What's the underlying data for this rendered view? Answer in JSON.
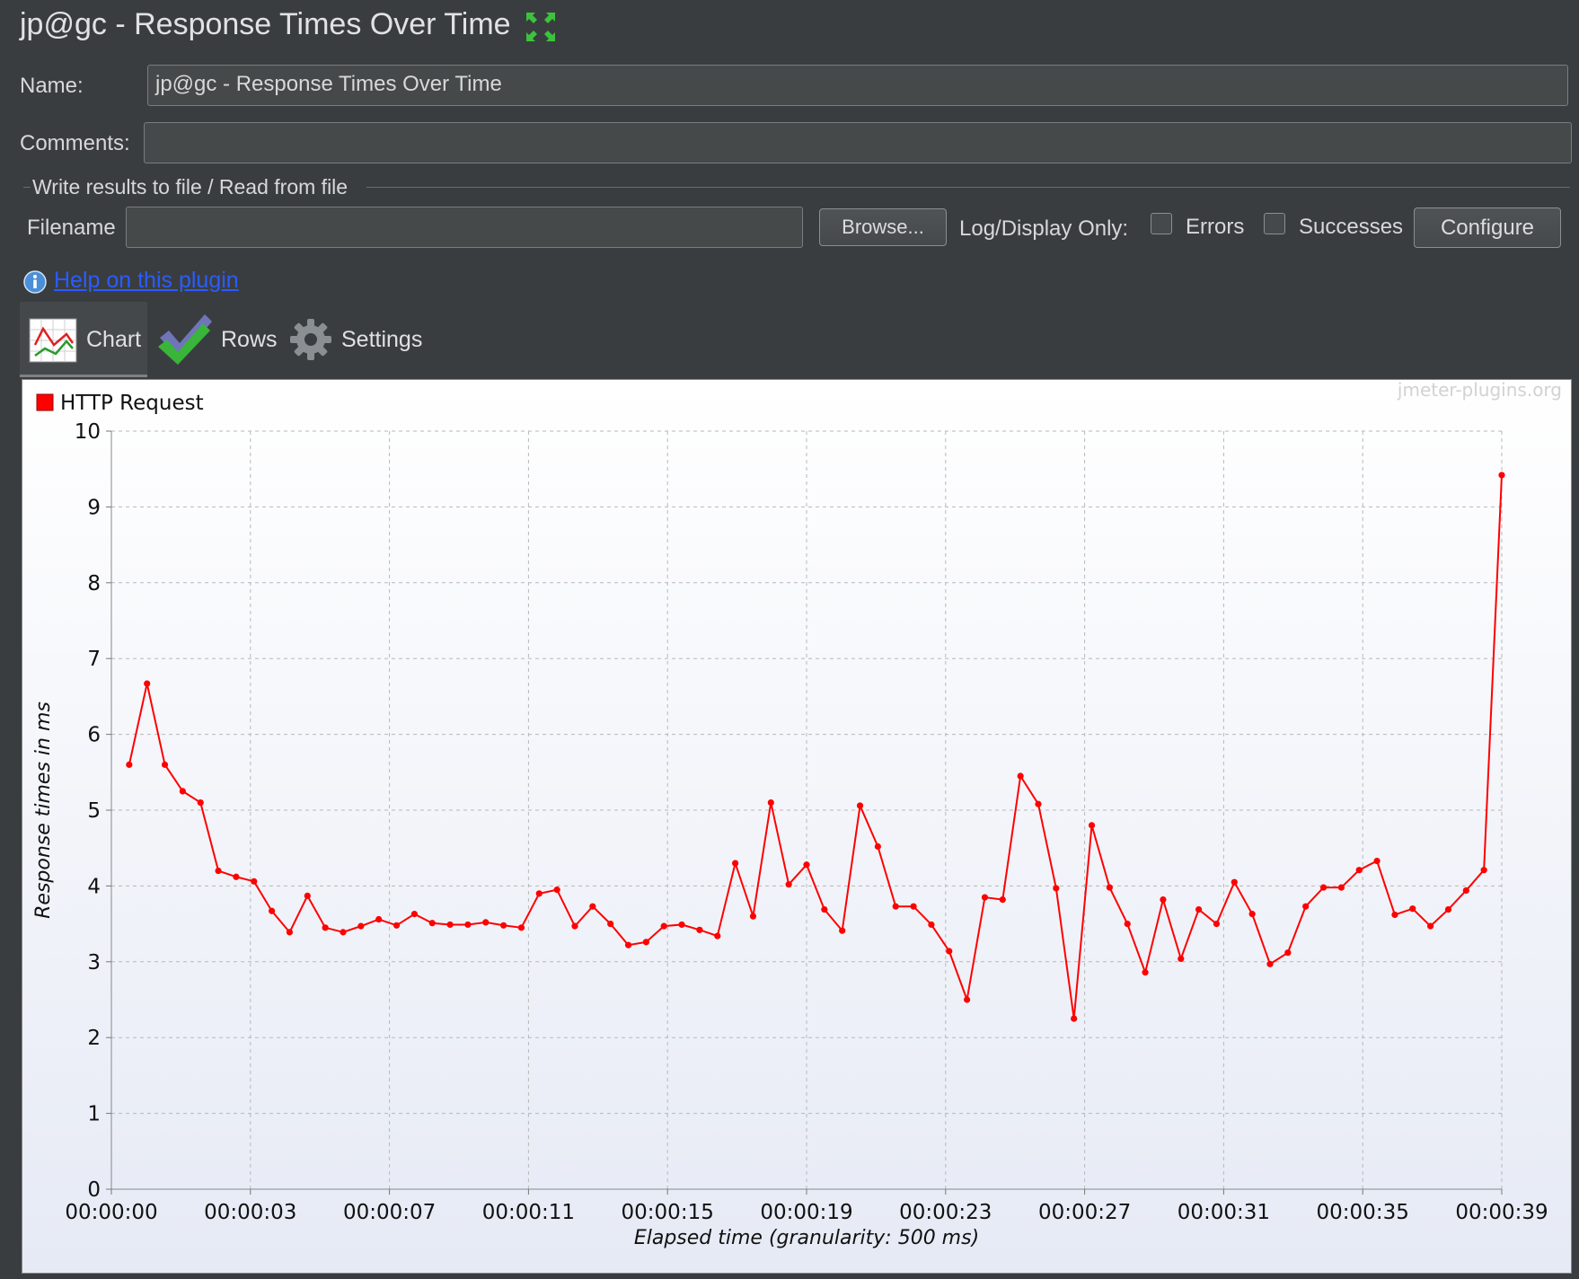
{
  "window": {
    "title": "jp@gc - Response Times Over Time"
  },
  "form": {
    "name_label": "Name:",
    "name_value": "jp@gc - Response Times Over Time",
    "comments_label": "Comments:",
    "comments_value": "",
    "group_title": "Write results to file / Read from file",
    "filename_label": "Filename",
    "filename_value": "",
    "browse_label": "Browse...",
    "log_display_label": "Log/Display Only:",
    "errors_label": "Errors",
    "successes_label": "Successes",
    "configure_label": "Configure"
  },
  "help": {
    "link_text": "Help on this plugin"
  },
  "tabs": [
    {
      "label": "Chart",
      "icon": "chart-icon",
      "active": true
    },
    {
      "label": "Rows",
      "icon": "checkmark-icon",
      "active": false
    },
    {
      "label": "Settings",
      "icon": "gear-icon",
      "active": false
    }
  ],
  "watermark": "jmeter-plugins.org",
  "colors": {
    "series": "#ff0000",
    "link": "#2a5cff"
  },
  "chart_data": {
    "type": "line",
    "title": "",
    "xlabel": "Elapsed time (granularity: 500 ms)",
    "ylabel": "Response times in ms",
    "ylim": [
      0,
      10
    ],
    "yticks": [
      0,
      1,
      2,
      3,
      4,
      5,
      6,
      7,
      8,
      9,
      10
    ],
    "xticks": [
      "00:00:00",
      "00:00:03",
      "00:00:07",
      "00:00:11",
      "00:00:15",
      "00:00:19",
      "00:00:23",
      "00:00:27",
      "00:00:31",
      "00:00:35",
      "00:00:39"
    ],
    "xlim_seconds": [
      0,
      39
    ],
    "grid": true,
    "legend": "top-left",
    "series": [
      {
        "name": "HTTP Request",
        "color": "#ff0000",
        "x_seconds": [
          0.5,
          1,
          1.5,
          2,
          2.5,
          3,
          3.5,
          4,
          4.5,
          5,
          5.5,
          6,
          6.5,
          7,
          7.5,
          8,
          8.5,
          9,
          9.5,
          10,
          10.5,
          11,
          11.5,
          12,
          12.5,
          13,
          13.5,
          14,
          14.5,
          15,
          15.5,
          16,
          16.5,
          17,
          17.5,
          18,
          18.5,
          19,
          19.5,
          20,
          20.5,
          21,
          21.5,
          22,
          22.5,
          23,
          23.5,
          24,
          24.5,
          25,
          25.5,
          26,
          26.5,
          27,
          27.5,
          28,
          28.5,
          29,
          29.5,
          30,
          30.5,
          31,
          31.5,
          32,
          32.5,
          33,
          33.5,
          34,
          34.5,
          35,
          35.5,
          36,
          36.5,
          37,
          37.5,
          38,
          38.5,
          39
        ],
        "values": [
          5.6,
          6.67,
          5.6,
          5.25,
          5.1,
          4.2,
          4.12,
          4.06,
          3.67,
          3.39,
          3.87,
          3.45,
          3.39,
          3.47,
          3.56,
          3.48,
          3.63,
          3.51,
          3.49,
          3.49,
          3.52,
          3.48,
          3.45,
          3.9,
          3.95,
          3.47,
          3.73,
          3.5,
          3.22,
          3.26,
          3.47,
          3.49,
          3.42,
          3.34,
          4.3,
          3.6,
          5.1,
          4.02,
          4.28,
          3.69,
          3.41,
          5.06,
          4.52,
          3.73,
          3.73,
          3.49,
          3.14,
          2.5,
          3.85,
          3.82,
          5.45,
          5.08,
          3.97,
          2.25,
          4.8,
          3.98,
          3.5,
          2.86,
          3.82,
          3.04,
          3.69,
          3.5,
          4.05,
          3.63,
          2.97,
          3.12,
          3.73,
          3.98,
          3.98,
          4.21,
          4.33,
          3.62,
          3.7,
          3.47,
          3.69,
          3.94,
          4.21,
          9.42
        ]
      }
    ]
  }
}
